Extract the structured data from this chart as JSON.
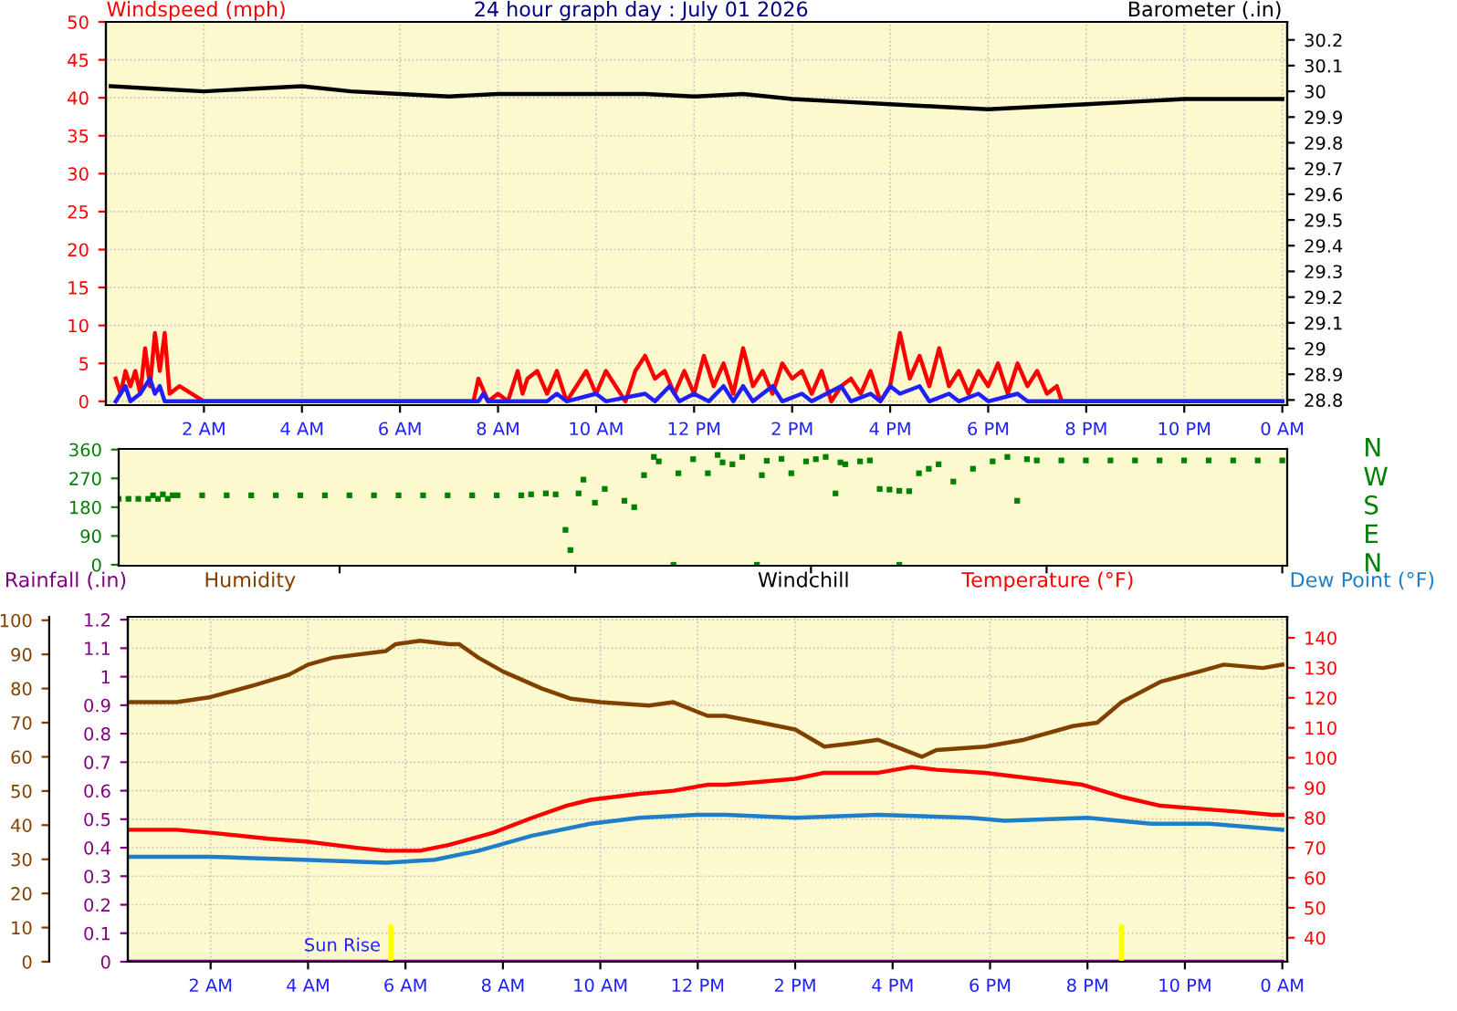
{
  "chart_data": [
    {
      "type": "line",
      "title": "24 hour graph day : July 01 2026",
      "ylabel": "Windspeed (mph)",
      "y2label": "Barometer (.in)",
      "xlim": [
        "2026-07-01T00:00",
        "2026-07-02T00:06"
      ],
      "xticks": [
        {
          "value": "2026-07-01T02:00",
          "label": "2 AM"
        },
        {
          "value": "2026-07-01T04:00",
          "label": "4 AM"
        },
        {
          "value": "2026-07-01T06:00",
          "label": "6 AM"
        },
        {
          "value": "2026-07-01T08:00",
          "label": "8 AM"
        },
        {
          "value": "2026-07-01T10:00",
          "label": "10 AM"
        },
        {
          "value": "2026-07-01T12:00",
          "label": "12 PM"
        },
        {
          "value": "2026-07-01T14:00",
          "label": "2 PM"
        },
        {
          "value": "2026-07-01T16:00",
          "label": "4 PM"
        },
        {
          "value": "2026-07-01T18:00",
          "label": "6 PM"
        },
        {
          "value": "2026-07-01T20:00",
          "label": "8 PM"
        },
        {
          "value": "2026-07-01T22:00",
          "label": "10 PM"
        },
        {
          "value": "2026-07-02T00:00",
          "label": "0 AM"
        }
      ],
      "ylim": [
        -0.5,
        50
      ],
      "yticks": [
        0,
        5,
        10,
        15,
        20,
        25,
        30,
        35,
        40,
        45,
        50
      ],
      "y2lim": [
        28.78,
        30.27
      ],
      "y2ticks": [
        28.8,
        28.9,
        29,
        29.1,
        29.2,
        29.3,
        29.4,
        29.5,
        29.6,
        29.7,
        29.8,
        29.9,
        30,
        30.1,
        30.2
      ],
      "grid": true,
      "series": [
        {
          "color": "#ff0000",
          "x": [
            "2026-07-01T00:12",
            "2026-07-01T00:18",
            "2026-07-01T00:24",
            "2026-07-01T00:30",
            "2026-07-01T00:36",
            "2026-07-01T00:42",
            "2026-07-01T00:48",
            "2026-07-01T00:54",
            "2026-07-01T01:00",
            "2026-07-01T01:06",
            "2026-07-01T01:12",
            "2026-07-01T01:18",
            "2026-07-01T01:30",
            "2026-07-01T02:00",
            "2026-07-01T05:00",
            "2026-07-01T07:30",
            "2026-07-01T07:36",
            "2026-07-01T07:48",
            "2026-07-01T08:00",
            "2026-07-01T08:12",
            "2026-07-01T08:24",
            "2026-07-01T08:30",
            "2026-07-01T08:36",
            "2026-07-01T08:48",
            "2026-07-01T09:00",
            "2026-07-01T09:12",
            "2026-07-01T09:24",
            "2026-07-01T09:36",
            "2026-07-01T09:48",
            "2026-07-01T10:00",
            "2026-07-01T10:12",
            "2026-07-01T10:24",
            "2026-07-01T10:36",
            "2026-07-01T10:48",
            "2026-07-01T11:00",
            "2026-07-01T11:12",
            "2026-07-01T11:24",
            "2026-07-01T11:36",
            "2026-07-01T11:48",
            "2026-07-01T12:00",
            "2026-07-01T12:12",
            "2026-07-01T12:24",
            "2026-07-01T12:36",
            "2026-07-01T12:48",
            "2026-07-01T13:00",
            "2026-07-01T13:12",
            "2026-07-01T13:24",
            "2026-07-01T13:36",
            "2026-07-01T13:48",
            "2026-07-01T14:00",
            "2026-07-01T14:12",
            "2026-07-01T14:24",
            "2026-07-01T14:36",
            "2026-07-01T14:48",
            "2026-07-01T15:00",
            "2026-07-01T15:12",
            "2026-07-01T15:24",
            "2026-07-01T15:36",
            "2026-07-01T15:48",
            "2026-07-01T16:00",
            "2026-07-01T16:12",
            "2026-07-01T16:24",
            "2026-07-01T16:36",
            "2026-07-01T16:48",
            "2026-07-01T17:00",
            "2026-07-01T17:12",
            "2026-07-01T17:24",
            "2026-07-01T17:36",
            "2026-07-01T17:48",
            "2026-07-01T18:00",
            "2026-07-01T18:12",
            "2026-07-01T18:24",
            "2026-07-01T18:36",
            "2026-07-01T18:48",
            "2026-07-01T19:00",
            "2026-07-01T19:12",
            "2026-07-01T19:24",
            "2026-07-01T19:30",
            "2026-07-01T22:00",
            "2026-07-02T00:00"
          ],
          "values": [
            3,
            1,
            4,
            2,
            4,
            1,
            7,
            2,
            9,
            4,
            9,
            1,
            2,
            0,
            0,
            0,
            3,
            0,
            1,
            0,
            4,
            1,
            3,
            4,
            1,
            4,
            0,
            2,
            4,
            1,
            4,
            2,
            0,
            4,
            6,
            3,
            4,
            1,
            4,
            1,
            6,
            2,
            5,
            1,
            7,
            2,
            4,
            1,
            5,
            3,
            4,
            1,
            4,
            0,
            2,
            3,
            1,
            4,
            0,
            2,
            9,
            3,
            6,
            2,
            7,
            2,
            4,
            1,
            4,
            2,
            5,
            1,
            5,
            2,
            4,
            1,
            2,
            0,
            0,
            0
          ]
        },
        {
          "color": "#2020ff",
          "x": [
            "2026-07-01T00:12",
            "2026-07-01T00:24",
            "2026-07-01T00:30",
            "2026-07-01T00:42",
            "2026-07-01T00:54",
            "2026-07-01T01:00",
            "2026-07-01T01:06",
            "2026-07-01T01:12",
            "2026-07-01T07:36",
            "2026-07-01T07:42",
            "2026-07-01T07:48",
            "2026-07-01T09:00",
            "2026-07-01T09:12",
            "2026-07-01T09:24",
            "2026-07-01T10:00",
            "2026-07-01T10:12",
            "2026-07-01T11:00",
            "2026-07-01T11:12",
            "2026-07-01T11:30",
            "2026-07-01T11:42",
            "2026-07-01T12:00",
            "2026-07-01T12:18",
            "2026-07-01T12:36",
            "2026-07-01T12:48",
            "2026-07-01T13:00",
            "2026-07-01T13:12",
            "2026-07-01T13:36",
            "2026-07-01T13:48",
            "2026-07-01T14:12",
            "2026-07-01T14:24",
            "2026-07-01T15:00",
            "2026-07-01T15:12",
            "2026-07-01T15:36",
            "2026-07-01T15:48",
            "2026-07-01T16:00",
            "2026-07-01T16:12",
            "2026-07-01T16:36",
            "2026-07-01T16:48",
            "2026-07-01T17:12",
            "2026-07-01T17:24",
            "2026-07-01T17:48",
            "2026-07-01T18:00",
            "2026-07-01T18:36",
            "2026-07-01T18:48",
            "2026-07-02T00:00"
          ],
          "values": [
            0,
            2,
            0,
            1,
            3,
            1,
            2,
            0,
            0,
            1,
            0,
            0,
            1,
            0,
            1,
            0,
            1,
            0,
            2,
            0,
            1,
            0,
            2,
            0,
            2,
            0,
            2,
            0,
            1,
            0,
            2,
            0,
            1,
            0,
            2,
            1,
            2,
            0,
            1,
            0,
            1,
            0,
            1,
            0,
            0
          ]
        },
        {
          "color": "#000000",
          "axis": "y2",
          "x": [
            "2026-07-01T00:06",
            "2026-07-01T01:00",
            "2026-07-01T02:00",
            "2026-07-01T03:00",
            "2026-07-01T04:00",
            "2026-07-01T05:00",
            "2026-07-01T06:00",
            "2026-07-01T07:00",
            "2026-07-01T08:00",
            "2026-07-01T09:00",
            "2026-07-01T10:00",
            "2026-07-01T11:00",
            "2026-07-01T12:00",
            "2026-07-01T13:00",
            "2026-07-01T14:00",
            "2026-07-01T15:00",
            "2026-07-01T16:00",
            "2026-07-01T17:00",
            "2026-07-01T18:00",
            "2026-07-01T19:00",
            "2026-07-01T20:00",
            "2026-07-01T21:00",
            "2026-07-01T22:00",
            "2026-07-01T23:00",
            "2026-07-02T00:00"
          ],
          "values": [
            30.02,
            30.01,
            30.0,
            30.01,
            30.02,
            30.0,
            29.99,
            29.98,
            29.99,
            29.99,
            29.99,
            29.99,
            29.98,
            29.99,
            29.97,
            29.96,
            29.95,
            29.94,
            29.93,
            29.94,
            29.95,
            29.96,
            29.97,
            29.97,
            29.97
          ]
        }
      ]
    },
    {
      "type": "scatter",
      "marker": "square",
      "xlim": [
        "2026-07-01T00:18",
        "2026-07-02T00:06"
      ],
      "tick_labels": "y",
      "ylim": [
        -3,
        362
      ],
      "yticks": [
        0,
        90,
        180,
        270,
        360
      ],
      "annotations": [
        "N",
        "W",
        "S",
        "E",
        "N"
      ],
      "series": [
        {
          "color": "#008000",
          "x": [
            "2026-07-01T00:18",
            "2026-07-01T00:30",
            "2026-07-01T00:42",
            "2026-07-01T00:54",
            "2026-07-01T01:00",
            "2026-07-01T01:06",
            "2026-07-01T01:12",
            "2026-07-01T01:18",
            "2026-07-01T01:24",
            "2026-07-01T01:30",
            "2026-07-01T02:00",
            "2026-07-01T02:30",
            "2026-07-01T03:00",
            "2026-07-01T03:30",
            "2026-07-01T04:00",
            "2026-07-01T04:30",
            "2026-07-01T05:00",
            "2026-07-01T05:30",
            "2026-07-01T06:00",
            "2026-07-01T06:30",
            "2026-07-01T07:00",
            "2026-07-01T07:30",
            "2026-07-01T08:00",
            "2026-07-01T08:30",
            "2026-07-01T08:42",
            "2026-07-01T09:00",
            "2026-07-01T09:12",
            "2026-07-01T09:24",
            "2026-07-01T09:30",
            "2026-07-01T09:40",
            "2026-07-01T09:46",
            "2026-07-01T10:00",
            "2026-07-01T10:12",
            "2026-07-01T10:36",
            "2026-07-01T10:48",
            "2026-07-01T11:00",
            "2026-07-01T11:12",
            "2026-07-01T11:18",
            "2026-07-01T11:36",
            "2026-07-01T11:42",
            "2026-07-01T12:00",
            "2026-07-01T12:18",
            "2026-07-01T12:30",
            "2026-07-01T12:36",
            "2026-07-01T12:48",
            "2026-07-01T13:00",
            "2026-07-01T13:18",
            "2026-07-01T13:24",
            "2026-07-01T13:30",
            "2026-07-01T13:48",
            "2026-07-01T14:00",
            "2026-07-01T14:18",
            "2026-07-01T14:30",
            "2026-07-01T14:42",
            "2026-07-01T14:54",
            "2026-07-01T15:00",
            "2026-07-01T15:06",
            "2026-07-01T15:24",
            "2026-07-01T15:36",
            "2026-07-01T15:48",
            "2026-07-01T16:00",
            "2026-07-01T16:12",
            "2026-07-01T16:12",
            "2026-07-01T16:24",
            "2026-07-01T16:36",
            "2026-07-01T16:48",
            "2026-07-01T17:00",
            "2026-07-01T17:18",
            "2026-07-01T17:42",
            "2026-07-01T18:06",
            "2026-07-01T18:24",
            "2026-07-01T18:36",
            "2026-07-01T18:48",
            "2026-07-01T19:00",
            "2026-07-01T19:30",
            "2026-07-01T20:00",
            "2026-07-01T20:30",
            "2026-07-01T21:00",
            "2026-07-01T21:30",
            "2026-07-01T22:00",
            "2026-07-01T22:30",
            "2026-07-01T23:00",
            "2026-07-01T23:30",
            "2026-07-02T00:00"
          ],
          "values": [
            206,
            206,
            206,
            206,
            217,
            206,
            220,
            206,
            217,
            217,
            217,
            217,
            217,
            217,
            217,
            217,
            217,
            217,
            217,
            217,
            217,
            217,
            217,
            217,
            220,
            223,
            220,
            109,
            46,
            223,
            266,
            194,
            237,
            200,
            180,
            280,
            337,
            323,
            0,
            286,
            330,
            286,
            343,
            320,
            314,
            337,
            0,
            280,
            325,
            331,
            286,
            323,
            330,
            337,
            223,
            320,
            314,
            323,
            326,
            237,
            235,
            231,
            0,
            230,
            286,
            300,
            314,
            260,
            300,
            323,
            337,
            200,
            330,
            326,
            326,
            326,
            326,
            326,
            326,
            326,
            326,
            326,
            326,
            326
          ]
        }
      ]
    },
    {
      "type": "line",
      "xlim": [
        "2026-07-01T00:18",
        "2026-07-02T00:06"
      ],
      "xticks": [
        {
          "value": "2026-07-01T02:00",
          "label": "2 AM"
        },
        {
          "value": "2026-07-01T04:00",
          "label": "4 AM"
        },
        {
          "value": "2026-07-01T06:00",
          "label": "6 AM"
        },
        {
          "value": "2026-07-01T08:00",
          "label": "8 AM"
        },
        {
          "value": "2026-07-01T10:00",
          "label": "10 AM"
        },
        {
          "value": "2026-07-01T12:00",
          "label": "12 PM"
        },
        {
          "value": "2026-07-01T14:00",
          "label": "2 PM"
        },
        {
          "value": "2026-07-01T16:00",
          "label": "4 PM"
        },
        {
          "value": "2026-07-01T18:00",
          "label": "6 PM"
        },
        {
          "value": "2026-07-01T20:00",
          "label": "8 PM"
        },
        {
          "value": "2026-07-01T22:00",
          "label": "10 PM"
        },
        {
          "value": "2026-07-02T00:00",
          "label": "0 AM"
        }
      ],
      "ylim": [
        0,
        101
      ],
      "yticks": [
        0,
        10,
        20,
        30,
        40,
        50,
        60,
        70,
        80,
        90,
        100
      ],
      "y2lim": [
        0,
        1.21
      ],
      "y2ticks": [
        0,
        0.1,
        0.2,
        0.3,
        0.4,
        0.5,
        0.6,
        0.7,
        0.8,
        0.9,
        1,
        1.1,
        1.2
      ],
      "y3lim": [
        32,
        147
      ],
      "y3ticks": [
        40,
        50,
        60,
        70,
        80,
        90,
        100,
        110,
        120,
        130,
        140
      ],
      "grid": true,
      "annotations": [
        "Windchill"
      ],
      "ref_lines": [
        {
          "axis": "x",
          "value": "2026-07-01T05:42",
          "label": "Sun Rise",
          "color": "#ffff00"
        },
        {
          "axis": "x",
          "value": "2026-07-01T20:42",
          "color": "#ffff00"
        }
      ],
      "series": [
        {
          "name": "Humidity",
          "color": "#804000",
          "x": [
            "2026-07-01T00:18",
            "2026-07-01T01:18",
            "2026-07-01T02:00",
            "2026-07-01T02:54",
            "2026-07-01T03:36",
            "2026-07-01T04:00",
            "2026-07-01T04:30",
            "2026-07-01T05:36",
            "2026-07-01T05:48",
            "2026-07-01T06:18",
            "2026-07-01T06:54",
            "2026-07-01T07:06",
            "2026-07-01T07:30",
            "2026-07-01T08:00",
            "2026-07-01T08:48",
            "2026-07-01T09:24",
            "2026-07-01T10:00",
            "2026-07-01T11:00",
            "2026-07-01T11:30",
            "2026-07-01T12:12",
            "2026-07-01T12:34",
            "2026-07-01T13:18",
            "2026-07-01T14:00",
            "2026-07-01T14:36",
            "2026-07-01T15:12",
            "2026-07-01T15:42",
            "2026-07-01T16:36",
            "2026-07-01T16:54",
            "2026-07-01T17:54",
            "2026-07-01T18:42",
            "2026-07-01T19:42",
            "2026-07-01T20:12",
            "2026-07-01T20:42",
            "2026-07-01T21:30",
            "2026-07-01T22:18",
            "2026-07-01T22:48",
            "2026-07-01T23:36",
            "2026-07-02T00:00"
          ],
          "values": [
            76,
            76,
            77.5,
            81,
            84,
            87,
            89,
            91,
            93,
            94,
            93,
            93,
            89,
            85,
            80,
            77,
            76,
            75,
            76,
            72,
            72,
            70,
            68,
            63,
            64,
            65,
            60,
            62,
            63,
            65,
            69,
            70,
            76,
            82,
            85,
            87,
            86,
            87
          ]
        },
        {
          "name": "Rainfall (.in)",
          "color": "#800080",
          "axis": "y2",
          "x": [
            "2026-07-01T00:18",
            "2026-07-02T00:00"
          ],
          "values": [
            0,
            0
          ]
        },
        {
          "name": "Temperature (°F)",
          "color": "#ff0000",
          "axis": "y3",
          "x": [
            "2026-07-01T00:18",
            "2026-07-01T01:18",
            "2026-07-01T02:00",
            "2026-07-01T03:12",
            "2026-07-01T04:00",
            "2026-07-01T05:00",
            "2026-07-01T05:36",
            "2026-07-01T06:18",
            "2026-07-01T06:54",
            "2026-07-01T07:48",
            "2026-07-01T08:36",
            "2026-07-01T09:18",
            "2026-07-01T09:48",
            "2026-07-01T10:48",
            "2026-07-01T11:30",
            "2026-07-01T12:12",
            "2026-07-01T12:34",
            "2026-07-01T13:18",
            "2026-07-01T14:00",
            "2026-07-01T14:36",
            "2026-07-01T15:42",
            "2026-07-01T16:24",
            "2026-07-01T16:54",
            "2026-07-01T17:54",
            "2026-07-01T18:54",
            "2026-07-01T19:54",
            "2026-07-01T20:42",
            "2026-07-01T21:30",
            "2026-07-01T22:18",
            "2026-07-01T23:06",
            "2026-07-01T23:48",
            "2026-07-02T00:00"
          ],
          "values": [
            76,
            76,
            75,
            73,
            72,
            70,
            69,
            69,
            71,
            75,
            80,
            84,
            86,
            88,
            89,
            91,
            91,
            92,
            93,
            95,
            95,
            97,
            96,
            95,
            93,
            91,
            87,
            84,
            83,
            82,
            81,
            81
          ]
        },
        {
          "name": "Dew Point (°F)",
          "color": "#1e7fc8",
          "axis": "y3",
          "x": [
            "2026-07-01T00:18",
            "2026-07-01T02:00",
            "2026-07-01T03:54",
            "2026-07-01T05:36",
            "2026-07-01T06:36",
            "2026-07-01T07:30",
            "2026-07-01T08:36",
            "2026-07-01T09:48",
            "2026-07-01T10:48",
            "2026-07-01T12:00",
            "2026-07-01T12:34",
            "2026-07-01T14:00",
            "2026-07-01T15:42",
            "2026-07-01T17:36",
            "2026-07-01T18:18",
            "2026-07-01T20:00",
            "2026-07-01T21:18",
            "2026-07-01T22:30",
            "2026-07-02T00:00"
          ],
          "values": [
            67,
            67,
            66,
            65,
            66,
            69,
            74,
            78,
            80,
            81,
            81,
            80,
            81,
            80,
            79,
            80,
            78,
            78,
            76
          ]
        }
      ]
    }
  ]
}
